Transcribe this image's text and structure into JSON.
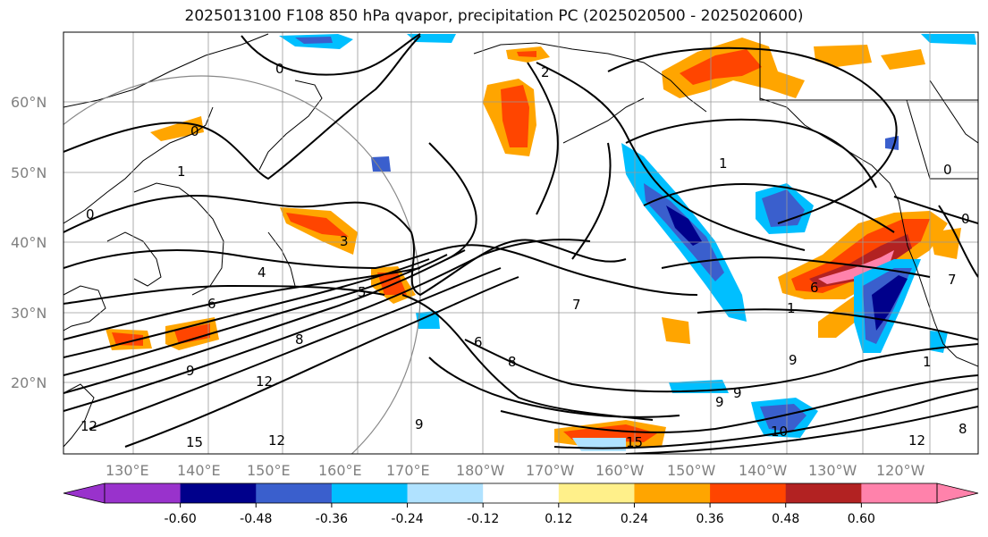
{
  "title": "2025013100 F108 850 hPa qvapor, precipitation PC (2025020500 - 2025020600)",
  "lat_labels": [
    "60°N",
    "50°N",
    "40°N",
    "30°N",
    "20°N"
  ],
  "lon_labels": [
    "130°E",
    "140°E",
    "150°E",
    "160°E",
    "170°E",
    "180°W",
    "170°W",
    "160°W",
    "150°W",
    "140°W",
    "130°W",
    "120°W"
  ],
  "colorbar": {
    "ticks": [
      "-0.60",
      "-0.48",
      "-0.36",
      "-0.24",
      "-0.12",
      "0.12",
      "0.24",
      "0.36",
      "0.48",
      "0.60"
    ],
    "colors": [
      "#9932cc",
      "#00008b",
      "#3a5fcd",
      "#00bfff",
      "#b0e2ff",
      "#ffffff",
      "#fff08a",
      "#ffa500",
      "#ff4500",
      "#b22222",
      "#ff82ab"
    ]
  },
  "contour_labels": [
    "0",
    "0",
    "1",
    "1",
    "0",
    "3",
    "4",
    "5",
    "6",
    "8",
    "9",
    "12",
    "15",
    "9",
    "12",
    "15",
    "6",
    "8",
    "9",
    "1",
    "6",
    "1",
    "9",
    "12",
    "8",
    "2",
    "0",
    "7",
    "7",
    "10",
    "12",
    "9",
    "0"
  ]
}
